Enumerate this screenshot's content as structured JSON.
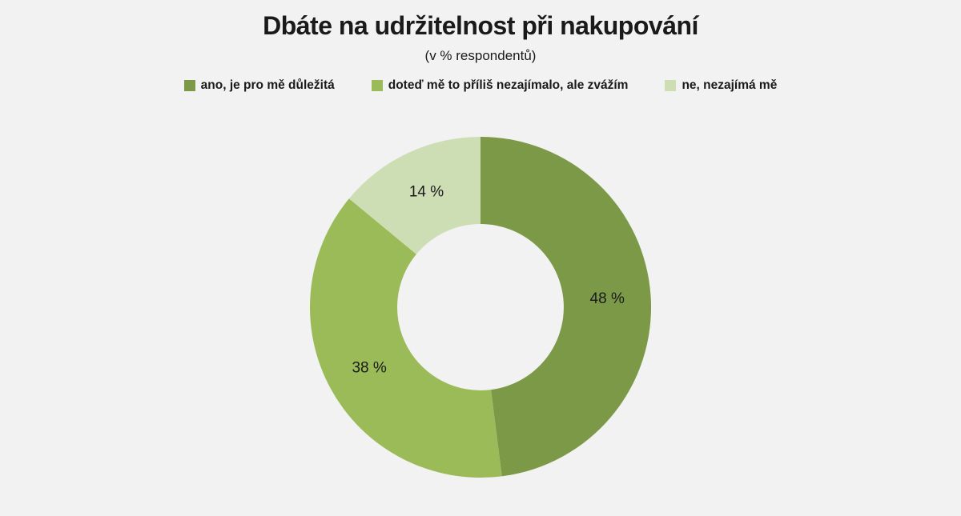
{
  "page": {
    "background_color": "#F2F2F2",
    "text_color": "#1a1a1a"
  },
  "chart_data": {
    "type": "pie",
    "subtype": "donut",
    "title": "Dbáte na udržitelnost při nakupování",
    "subtitle": "(v % respondentů)",
    "unit": "%",
    "legend_position": "top",
    "direction": "clockwise",
    "start_angle_deg": 0,
    "inner_radius_ratio": 0.488,
    "label_color": "#1a1a1a",
    "slices": [
      {
        "label": "ano, je pro mě důležitá",
        "value": 48,
        "data_label": "48 %",
        "color": "#7C9948"
      },
      {
        "label": "doteď mě to příliš nezajímalo, ale zvážím",
        "value": 38,
        "data_label": "38 %",
        "color": "#9BBB59"
      },
      {
        "label": "ne, nezajímá mě",
        "value": 14,
        "data_label": "14 %",
        "color": "#CEDEB4"
      }
    ]
  }
}
